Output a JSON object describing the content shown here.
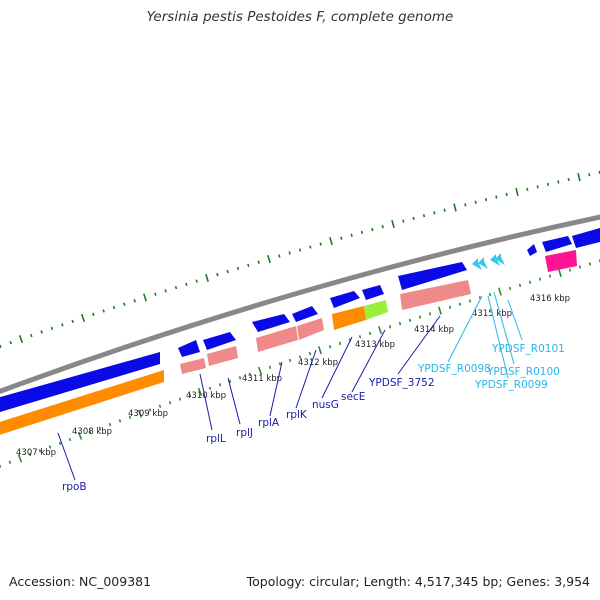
{
  "title": "Yersinia pestis Pestoides F, complete genome",
  "footer": {
    "accession": "Accession: NC_009381",
    "summary": "Topology: circular; Length: 4,517,345 bp; Genes: 3,954"
  },
  "tick_labels": [
    "4307 kbp",
    "4308 kbp",
    "4309 kbp",
    "4310 kbp",
    "4311 kbp",
    "4312 kbp",
    "4313 kbp",
    "4314 kbp",
    "4315 kbp",
    "4316 kbp"
  ],
  "gene_labels": [
    "rpoB",
    "rplL",
    "rplJ",
    "rplA",
    "rplK",
    "nusG",
    "secE",
    "YPDSF_3752"
  ],
  "rna_labels": [
    "YPDSF_R0098",
    "YPDSF_R0099",
    "YPDSF_R0100",
    "YPDSF_R0101"
  ],
  "colors": {
    "backbone": "#888888",
    "cds": "#0a0ae6",
    "gene": "#ff8c00",
    "gene_alt": "#9aef3c",
    "cds_pink": "#f08a8a",
    "rna": "#33c8f0",
    "rrna": "#ff1493",
    "tick_major": "#1e7a1e",
    "tick_minor": "#2e8b2e",
    "gene_label": "#1a1aa8",
    "rna_label": "#29b6e6"
  }
}
